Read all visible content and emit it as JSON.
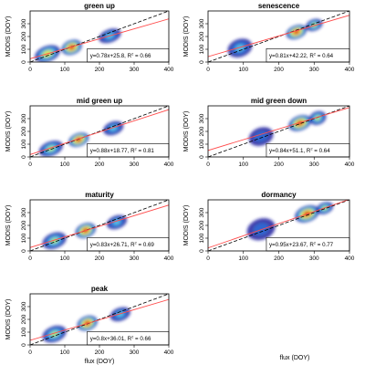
{
  "chart_data": [
    {
      "type": "scatter",
      "title": "green up",
      "xlabel": "",
      "ylabel": "MODIS (DOY)",
      "xlim": [
        0,
        400
      ],
      "ylim": [
        0,
        400
      ],
      "xticks": [
        "0",
        "100",
        "200",
        "300",
        "400"
      ],
      "yticks": [
        "0",
        "100",
        "200",
        "300"
      ],
      "equation": "y=0.78x+25.8,  R",
      "r2_value": " = 0.66",
      "fit": {
        "slope": 0.78,
        "intercept": 25.8,
        "r2": 0.66
      },
      "density_clusters": [
        {
          "x": 50,
          "y": 65,
          "sx": 32,
          "sy": 22,
          "w": 0.7
        },
        {
          "x": 120,
          "y": 115,
          "sx": 25,
          "sy": 20,
          "w": 1.0
        },
        {
          "x": 230,
          "y": 205,
          "sx": 28,
          "sy": 18,
          "w": 0.45
        }
      ]
    },
    {
      "type": "scatter",
      "title": "senescence",
      "xlabel": "",
      "ylabel": "MODIS (DOY)",
      "xlim": [
        0,
        400
      ],
      "ylim": [
        0,
        400
      ],
      "xticks": [
        "0",
        "100",
        "200",
        "300",
        "400"
      ],
      "yticks": [
        "0",
        "100",
        "200",
        "300"
      ],
      "equation": "y=0.81x+42.22,  R",
      "r2_value": " = 0.64",
      "fit": {
        "slope": 0.81,
        "intercept": 42.22,
        "r2": 0.64
      },
      "density_clusters": [
        {
          "x": 90,
          "y": 110,
          "sx": 30,
          "sy": 25,
          "w": 0.4
        },
        {
          "x": 250,
          "y": 235,
          "sx": 25,
          "sy": 18,
          "w": 1.0
        },
        {
          "x": 300,
          "y": 290,
          "sx": 20,
          "sy": 15,
          "w": 0.5
        }
      ]
    },
    {
      "type": "scatter",
      "title": "mid green up",
      "xlabel": "",
      "ylabel": "MODIS (DOY)",
      "xlim": [
        0,
        400
      ],
      "ylim": [
        0,
        400
      ],
      "xticks": [
        "0",
        "100",
        "200",
        "300",
        "400"
      ],
      "yticks": [
        "0",
        "100",
        "200",
        "300"
      ],
      "equation": "y=0.88x+18.77,  R",
      "r2_value": " = 0.81",
      "fit": {
        "slope": 0.88,
        "intercept": 18.77,
        "r2": 0.81
      },
      "density_clusters": [
        {
          "x": 60,
          "y": 65,
          "sx": 30,
          "sy": 20,
          "w": 0.6
        },
        {
          "x": 140,
          "y": 135,
          "sx": 25,
          "sy": 18,
          "w": 1.0
        },
        {
          "x": 240,
          "y": 225,
          "sx": 25,
          "sy": 18,
          "w": 0.45
        }
      ]
    },
    {
      "type": "scatter",
      "title": "mid green down",
      "xlabel": "",
      "ylabel": "MODIS (DOY)",
      "xlim": [
        0,
        400
      ],
      "ylim": [
        0,
        400
      ],
      "xticks": [
        "0",
        "100",
        "200",
        "300",
        "400"
      ],
      "yticks": [
        "0",
        "100",
        "200",
        "300"
      ],
      "equation": "y=0.84x+51.1,  R",
      "r2_value": " = 0.64",
      "fit": {
        "slope": 0.84,
        "intercept": 51.1,
        "r2": 0.64
      },
      "density_clusters": [
        {
          "x": 150,
          "y": 160,
          "sx": 30,
          "sy": 25,
          "w": 0.35
        },
        {
          "x": 260,
          "y": 265,
          "sx": 28,
          "sy": 20,
          "w": 1.0
        },
        {
          "x": 310,
          "y": 305,
          "sx": 20,
          "sy": 18,
          "w": 0.55
        }
      ]
    },
    {
      "type": "scatter",
      "title": "maturity",
      "xlabel": "",
      "ylabel": "MODIS (DOY)",
      "xlim": [
        0,
        400
      ],
      "ylim": [
        0,
        400
      ],
      "xticks": [
        "0",
        "100",
        "200",
        "300",
        "400"
      ],
      "yticks": [
        "0",
        "100",
        "200",
        "300"
      ],
      "equation": "y=0.83x+26.71,  R",
      "r2_value": " = 0.69",
      "fit": {
        "slope": 0.83,
        "intercept": 26.71,
        "r2": 0.69
      },
      "density_clusters": [
        {
          "x": 70,
          "y": 80,
          "sx": 30,
          "sy": 22,
          "w": 0.55
        },
        {
          "x": 160,
          "y": 160,
          "sx": 25,
          "sy": 20,
          "w": 1.0
        },
        {
          "x": 250,
          "y": 225,
          "sx": 25,
          "sy": 18,
          "w": 0.4
        }
      ]
    },
    {
      "type": "scatter",
      "title": "dormancy",
      "xlabel": "",
      "ylabel": "MODIS (DOY)",
      "xlim": [
        0,
        400
      ],
      "ylim": [
        0,
        400
      ],
      "xticks": [
        "0",
        "100",
        "200",
        "300",
        "400"
      ],
      "yticks": [
        "0",
        "100",
        "200",
        "300"
      ],
      "equation": "y=0.95x+23.67,  R",
      "r2_value": " = 0.77",
      "fit": {
        "slope": 0.95,
        "intercept": 23.67,
        "r2": 0.77
      },
      "density_clusters": [
        {
          "x": 150,
          "y": 170,
          "sx": 35,
          "sy": 30,
          "w": 0.35
        },
        {
          "x": 280,
          "y": 290,
          "sx": 30,
          "sy": 22,
          "w": 1.0
        },
        {
          "x": 330,
          "y": 335,
          "sx": 20,
          "sy": 15,
          "w": 0.6
        }
      ]
    },
    {
      "type": "scatter",
      "title": "peak",
      "xlabel": "flux (DOY)",
      "ylabel": "MODIS (DOY)",
      "xlim": [
        0,
        400
      ],
      "ylim": [
        0,
        400
      ],
      "xticks": [
        "0",
        "100",
        "200",
        "300",
        "400"
      ],
      "yticks": [
        "0",
        "100",
        "200",
        "300"
      ],
      "equation": "y=0.8x+36.01,  R",
      "r2_value": " = 0.66",
      "fit": {
        "slope": 0.8,
        "intercept": 36.01,
        "r2": 0.66
      },
      "density_clusters": [
        {
          "x": 70,
          "y": 85,
          "sx": 30,
          "sy": 22,
          "w": 0.55
        },
        {
          "x": 165,
          "y": 170,
          "sx": 25,
          "sy": 20,
          "w": 1.0
        },
        {
          "x": 260,
          "y": 240,
          "sx": 25,
          "sy": 18,
          "w": 0.4
        }
      ]
    }
  ],
  "shared_xlabel": "flux (DOY)",
  "colors": {
    "fit_line": "#ff4d4d",
    "one_to_one": "#000000",
    "density": [
      "#1c1ca0",
      "#2e6fd8",
      "#5ec9e8",
      "#b6e86a",
      "#f2e23c",
      "#f28c28",
      "#d01c1c"
    ]
  }
}
